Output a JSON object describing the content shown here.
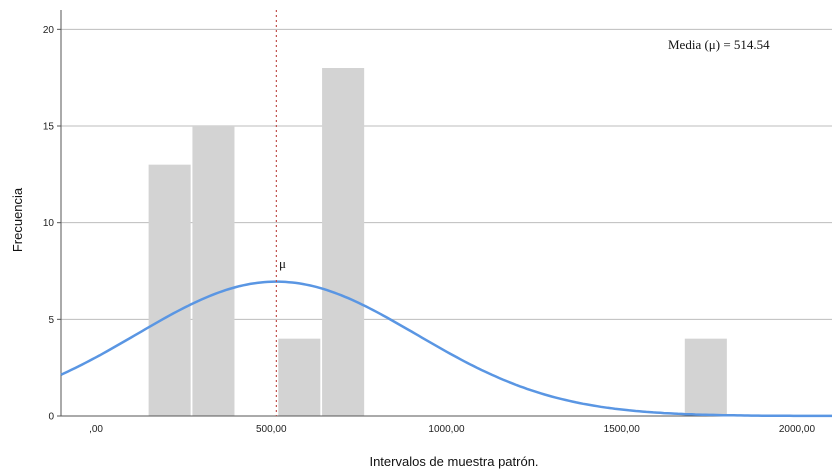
{
  "chart_data": {
    "type": "bar",
    "subtype": "histogram-with-normal-curve",
    "xlabel": "Intervalos de muestra patrón.",
    "ylabel": "Frecuencia",
    "xlim": [
      -100,
      2100
    ],
    "ylim": [
      0,
      21
    ],
    "x_ticks": [
      0,
      500,
      1000,
      1500,
      2000
    ],
    "x_tick_labels": [
      ",00",
      "500,00",
      "1000,00",
      "1500,00",
      "2000,00"
    ],
    "y_ticks": [
      0,
      5,
      10,
      15,
      20
    ],
    "y_tick_labels": [
      "0",
      "5",
      "10",
      "15",
      "20"
    ],
    "grid": "horizontal",
    "bars": [
      {
        "x0": 150,
        "x1": 270,
        "value": 13
      },
      {
        "x0": 275,
        "x1": 395,
        "value": 15
      },
      {
        "x0": 520,
        "x1": 640,
        "value": 4
      },
      {
        "x0": 645,
        "x1": 765,
        "value": 18
      },
      {
        "x0": 1680,
        "x1": 1800,
        "value": 4
      }
    ],
    "mean": 514.54,
    "mean_marker_label": "μ",
    "mean_annotation": "Media (μ) = 514.54",
    "normal_curve": {
      "mean": 514.54,
      "sd": 400,
      "peak": 6.95
    },
    "colors": {
      "bar": "#d3d3d3",
      "curve": "#5a96e3",
      "mean_line": "#c0504d",
      "grid": "#bdbdbd",
      "axis": "#555555"
    }
  }
}
